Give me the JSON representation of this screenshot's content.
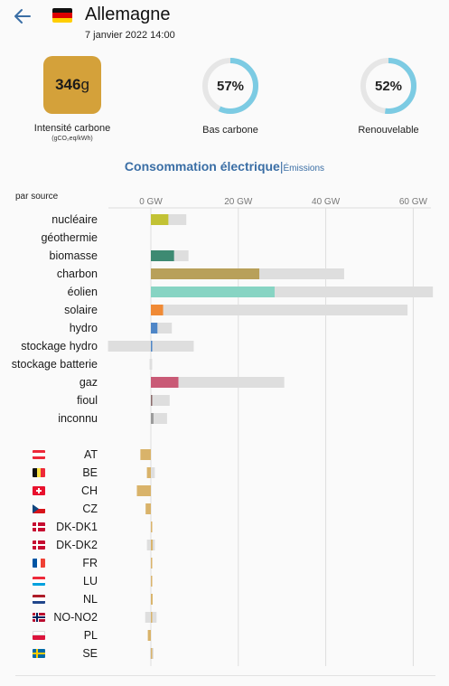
{
  "header": {
    "zone_name": "Allemagne",
    "datetime": "7 janvier 2022 14:00",
    "back_icon": "arrow-left-icon",
    "flag": "germany-flag"
  },
  "kpis": {
    "carbon_intensity": {
      "value": "346",
      "unit": "g",
      "label": "Intensité carbone",
      "sublabel": "(gCO₂eq/kWh)",
      "color": "#d4a13a"
    },
    "low_carbon": {
      "value": "57%",
      "fraction": 0.57,
      "label": "Bas carbone",
      "color": "#7ccbe3"
    },
    "renewable": {
      "value": "52%",
      "fraction": 0.52,
      "label": "Renouvelable",
      "color": "#7ccbe3"
    }
  },
  "tabs": {
    "active": "Consommation électrique",
    "separator": "|",
    "other": "Émissions"
  },
  "by_source_label": "par source",
  "chart_data": {
    "type": "bar",
    "unit": "GW",
    "xlim": [
      -10,
      65
    ],
    "ticks": [
      0,
      20,
      40,
      60
    ],
    "tick_labels": [
      "0 GW",
      "20 GW",
      "40 GW",
      "60 GW"
    ],
    "sources": [
      {
        "name": "nucléaire",
        "production": 4.0,
        "capacity": 8.1,
        "color": "#c2c234"
      },
      {
        "name": "géothermie",
        "production": 0,
        "capacity": 0,
        "color": "#ffcc33"
      },
      {
        "name": "biomasse",
        "production": 5.3,
        "capacity": 8.6,
        "color": "#3d8a72"
      },
      {
        "name": "charbon",
        "production": 24.8,
        "capacity": 44.2,
        "color": "#b8a05a"
      },
      {
        "name": "éolien",
        "production": 28.3,
        "capacity": 64.5,
        "color": "#87d4c3"
      },
      {
        "name": "solaire",
        "production": 2.8,
        "capacity": 58.7,
        "color": "#f08a35"
      },
      {
        "name": "hydro",
        "production": 1.5,
        "capacity": 4.8,
        "color": "#4e86c7"
      },
      {
        "name": "stockage hydro",
        "production": 0.3,
        "capacity": 9.8,
        "capacity_neg": -9.8,
        "color": "#4e86c7"
      },
      {
        "name": "stockage batterie",
        "production": 0,
        "capacity": 0.3,
        "capacity_neg": -0.3,
        "color": "#8a8a8a"
      },
      {
        "name": "gaz",
        "production": 6.3,
        "capacity": 30.5,
        "color": "#c95a76"
      },
      {
        "name": "fioul",
        "production": 0.3,
        "capacity": 4.3,
        "color": "#8a6a6a"
      },
      {
        "name": "inconnu",
        "production": 0.6,
        "capacity": 3.7,
        "color": "#9a9a9a"
      }
    ],
    "exchanges": [
      {
        "name": "AT",
        "flow": -2.4,
        "capacity": -2.4,
        "flag": "austria-flag"
      },
      {
        "name": "BE",
        "flow": -0.9,
        "capacity": 0.9,
        "capacity_neg": -0.9,
        "flag": "belgium-flag"
      },
      {
        "name": "CH",
        "flow": -3.2,
        "capacity": -3.2,
        "flag": "switzerland-flag"
      },
      {
        "name": "CZ",
        "flow": -1.2,
        "capacity": -1.2,
        "flag": "czech-flag"
      },
      {
        "name": "DK-DK1",
        "flow": 0.2,
        "capacity": 0.2,
        "flag": "denmark-flag"
      },
      {
        "name": "DK-DK2",
        "flow": 0.4,
        "capacity": 0.9,
        "capacity_neg": -0.9,
        "flag": "denmark-flag"
      },
      {
        "name": "FR",
        "flow": 0.2,
        "capacity": 0.2,
        "flag": "france-flag"
      },
      {
        "name": "LU",
        "flow": 0.2,
        "capacity": 0.2,
        "flag": "luxembourg-flag"
      },
      {
        "name": "NL",
        "flow": 0.4,
        "capacity": 0.4,
        "flag": "netherlands-flag"
      },
      {
        "name": "NO-NO2",
        "flow": 0.2,
        "capacity": 1.3,
        "capacity_neg": -1.3,
        "flag": "norway-flag"
      },
      {
        "name": "PL",
        "flow": -0.7,
        "capacity": -0.7,
        "flag": "poland-flag"
      },
      {
        "name": "SE",
        "flow": 0.2,
        "capacity": 0.6,
        "capacity_neg": -0.2,
        "flag": "sweden-flag"
      }
    ],
    "exchange_color": "#d9b36a",
    "capacity_color": "#dedede"
  }
}
